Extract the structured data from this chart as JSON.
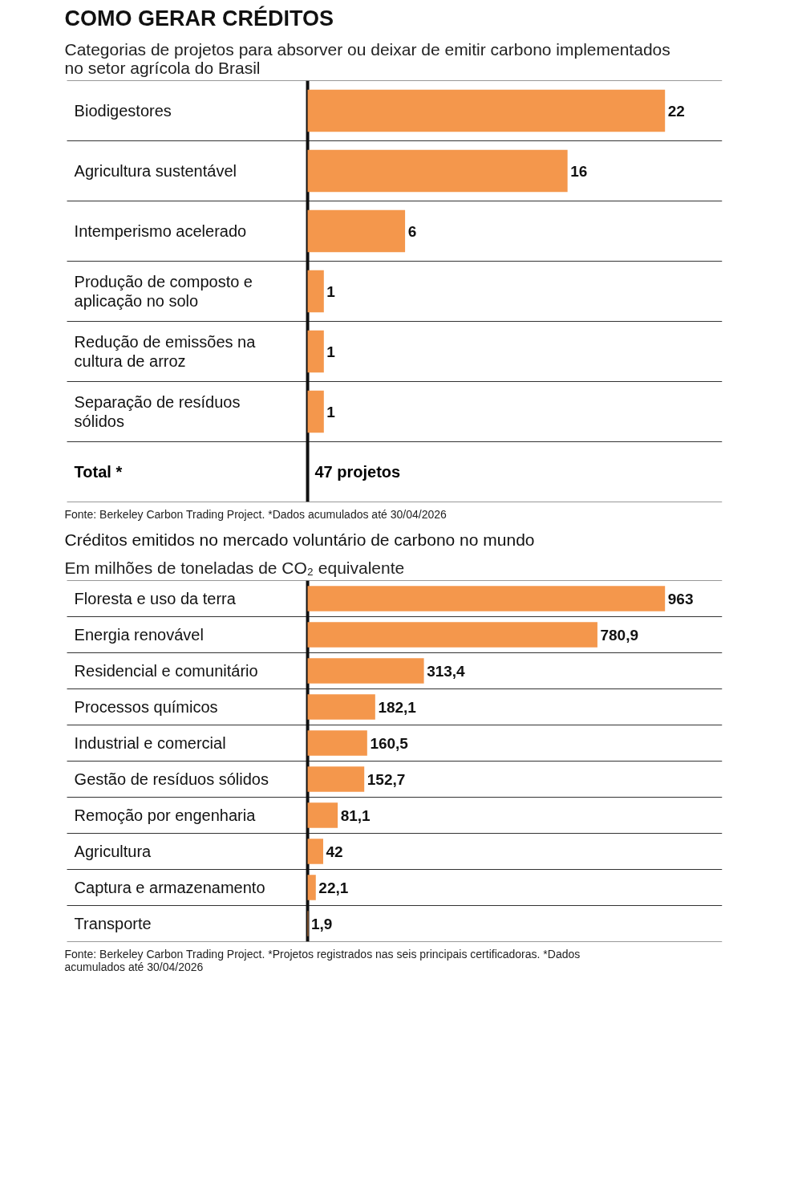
{
  "chart_data": [
    {
      "type": "bar",
      "orientation": "horizontal",
      "title": "COMO GERAR CRÉDITOS",
      "subtitle": "Categorias de projetos para absorver ou deixar de emitir carbono implementados no setor agrícola do Brasil",
      "categories": [
        "Biodigestores",
        "Agricultura sustentável",
        "Intemperismo acelerado",
        "Produção de composto e aplicação no solo",
        "Redução de emissões na cultura de arroz",
        "Separação de resíduos sólidos"
      ],
      "values": [
        22,
        16,
        6,
        1,
        1,
        1
      ],
      "color": "#f4974c",
      "data_labels": true,
      "annotations": [
        "Total *",
        "47 projetos",
        "Fonte: Berkeley Carbon Trading Project. *Dados acumulados até 30/04/2026"
      ]
    },
    {
      "type": "bar",
      "orientation": "horizontal",
      "title": "Créditos emitidos no mercado voluntário de carbono no mundo",
      "subtitle": "Em milhões de toneladas de CO₂ equivalente",
      "categories": [
        "Floresta e uso da terra",
        "Energia renovável",
        "Residencial e comunitário",
        "Processos químicos",
        "Industrial e comercial",
        "Gestão de resíduos sólidos",
        "Remoção por engenharia",
        "Agricultura",
        "Captura e armazenamento",
        "Transporte"
      ],
      "values": [
        963,
        780.9,
        313.4,
        182.1,
        160.5,
        152.7,
        81.1,
        42,
        22.1,
        1.9
      ],
      "color": "#f4974c",
      "value_labels": [
        "963",
        "780,9",
        "313,4",
        "182,1",
        "160,5",
        "152,7",
        "81,1",
        "42",
        "22,1",
        "1,9"
      ],
      "annotations": [
        "Fonte: Berkeley Carbon Trading Project. *Projetos registrados nas seis principais certificadoras. *Dados acumulados até 30/04/2026"
      ]
    }
  ]
}
